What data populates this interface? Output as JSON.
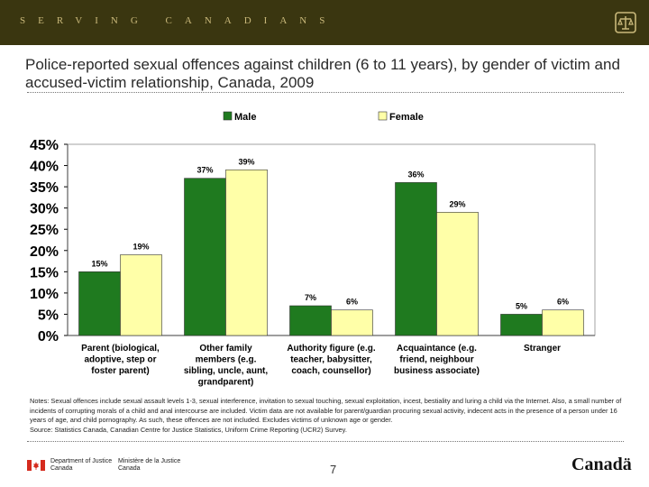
{
  "banner": {
    "text": "SERVING   CANADIANS"
  },
  "slide": {
    "title": "Police-reported sexual offences against children (6 to 11 years), by gender of victim and accused-victim relationship, Canada, 2009",
    "notes": "Notes:  Sexual offences include sexual assault levels 1-3, sexual interference, invitation to sexual touching, sexual exploitation, incest, bestiality and luring a child via the Internet. Also, a small number of incidents of corrupting morals of a child and anal intercourse are included.  Victim data are not available for parent/guardian procuring sexual activity, indecent acts in the presence of a person under 16 years of age, and child pornography. As such, these offences are not included. Excludes victims of unknown age or gender.",
    "source": "Source: Statistics Canada, Canadian Centre for Justice Statistics, Uniform Crime Reporting (UCR2) Survey.",
    "page_number": "7"
  },
  "footer": {
    "dept_en_1": "Department of Justice",
    "dept_en_2": "Canada",
    "dept_fr_1": "Ministère de la Justice",
    "dept_fr_2": "Canada",
    "wordmark": "Canadä"
  },
  "chart_data": {
    "type": "bar",
    "categories": [
      [
        "Parent (biological,",
        "adoptive, step or",
        "foster parent)"
      ],
      [
        "Other family",
        "members (e.g.",
        "sibling, uncle, aunt,",
        "grandparent)"
      ],
      [
        "Authority figure (e.g.",
        "teacher, babysitter,",
        "coach, counsellor)"
      ],
      [
        "Acquaintance (e.g.",
        "friend, neighbour",
        "business associate)"
      ],
      [
        "Stranger"
      ]
    ],
    "series": [
      {
        "name": "Male",
        "values": [
          15,
          37,
          7,
          36,
          5
        ],
        "labels": [
          "15%",
          "37%",
          "7%",
          "36%",
          "5%"
        ],
        "color": "#1f7a1f"
      },
      {
        "name": "Female",
        "values": [
          19,
          39,
          6,
          29,
          6
        ],
        "labels": [
          "19%",
          "39%",
          "6%",
          "29%",
          "6%"
        ],
        "color": "#ffffa8"
      }
    ],
    "ylim": [
      0,
      45
    ],
    "y_ticks": [
      "0%",
      "5%",
      "10%",
      "15%",
      "20%",
      "25%",
      "30%",
      "35%",
      "40%",
      "45%"
    ],
    "legend_position": "top-center",
    "grid": false
  }
}
